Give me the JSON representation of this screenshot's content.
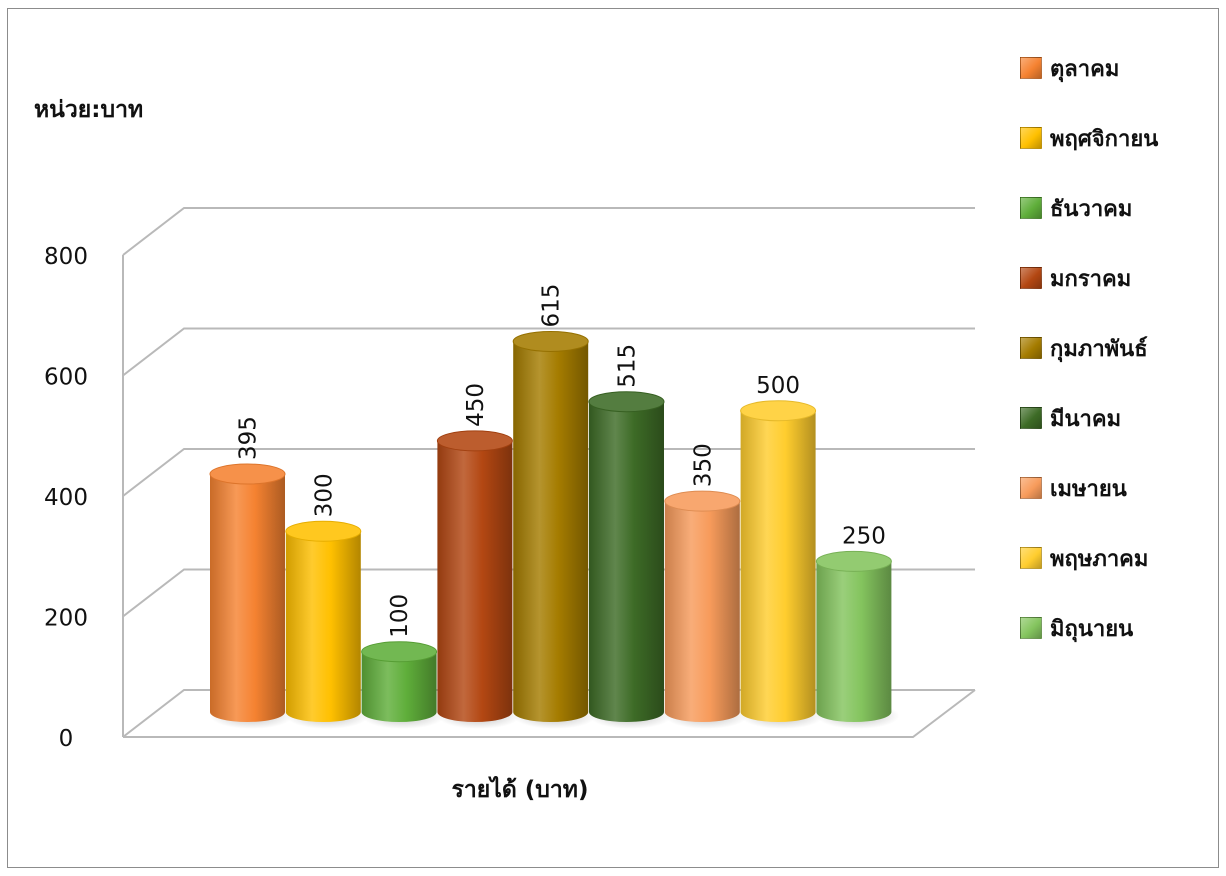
{
  "chart_data": {
    "type": "bar",
    "style": "3d-cylinder",
    "unit_label": "หน่วย:บาท",
    "xlabel": "รายได้ (บาท)",
    "ylim": [
      0,
      800
    ],
    "y_ticks": [
      0,
      200,
      400,
      600,
      800
    ],
    "grid": true,
    "legend_position": "right",
    "series": [
      {
        "name": "ตุลาคม",
        "value": 395,
        "color": "#f58231"
      },
      {
        "name": "พฤศจิกายน",
        "value": 300,
        "color": "#ffc000"
      },
      {
        "name": "ธันวาคม",
        "value": 100,
        "color": "#5fae3a"
      },
      {
        "name": "มกราคม",
        "value": 450,
        "color": "#b34712"
      },
      {
        "name": "กุมภาพันธ์",
        "value": 615,
        "color": "#a57c00"
      },
      {
        "name": "มีนาคม",
        "value": 515,
        "color": "#3d6b26"
      },
      {
        "name": "เมษายน",
        "value": 350,
        "color": "#f79b5b"
      },
      {
        "name": "พฤษภาคม",
        "value": 500,
        "color": "#ffcd2e"
      },
      {
        "name": "มิถุนายน",
        "value": 250,
        "color": "#84c45e"
      }
    ]
  }
}
